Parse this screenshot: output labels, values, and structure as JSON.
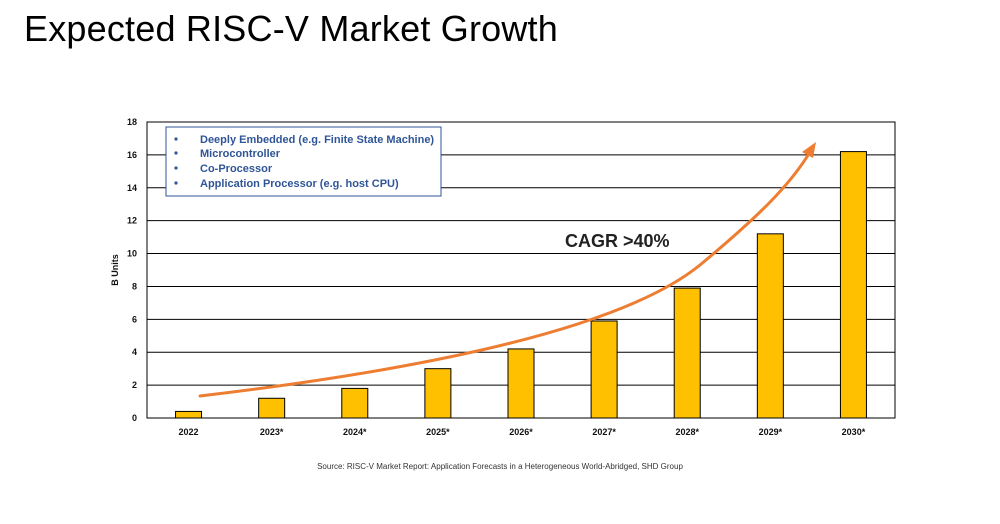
{
  "page": {
    "title": "Expected RISC-V Market Growth"
  },
  "chart_data": {
    "type": "bar",
    "title": "",
    "xlabel": "",
    "ylabel": "B Units",
    "ylim": [
      0,
      18
    ],
    "yticks": [
      0,
      2,
      4,
      6,
      8,
      10,
      12,
      14,
      16,
      18
    ],
    "categories": [
      "2022",
      "2023*",
      "2024*",
      "2025*",
      "2026*",
      "2027*",
      "2028*",
      "2029*",
      "2030*"
    ],
    "values": [
      0.4,
      1.2,
      1.8,
      3.0,
      4.2,
      5.9,
      7.9,
      11.2,
      16.2
    ],
    "grid": true,
    "bar_color": "#ffc000",
    "legend": {
      "position": "top-left",
      "items": [
        "Deeply Embedded (e.g. Finite State Machine)",
        "Microcontroller",
        "Co-Processor",
        "Application Processor (e.g. host CPU)"
      ],
      "color": "#2f5597"
    },
    "annotations": {
      "cagr_label": "CAGR >40%",
      "trend_arrow_color": "#ed7d31"
    }
  },
  "footer": {
    "source": "Source: RISC-V Market Report: Application Forecasts in a Heterogeneous World-Abridged, SHD Group"
  }
}
